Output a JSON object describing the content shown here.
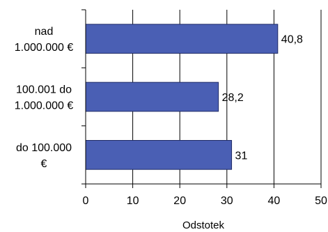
{
  "chart_data": {
    "type": "bar",
    "orientation": "horizontal",
    "categories": [
      [
        "nad",
        "1.000.000 €"
      ],
      [
        "100.001 do",
        "1.000.000 €"
      ],
      [
        "do 100.000",
        "€"
      ]
    ],
    "values": [
      40.8,
      28.2,
      31
    ],
    "data_labels": [
      "40,8",
      "28,2",
      "31"
    ],
    "xlim": [
      0,
      50
    ],
    "xticks": [
      0,
      10,
      20,
      30,
      40,
      50
    ],
    "xtick_labels": [
      "0",
      "10",
      "20",
      "30",
      "40",
      "50"
    ],
    "xlabel": "Odstotek",
    "ylabel": "",
    "title": "",
    "grid": "vertical",
    "legend": "none",
    "bar_color": "#4a5fb4",
    "bar_stroke": "#1f2b66"
  }
}
